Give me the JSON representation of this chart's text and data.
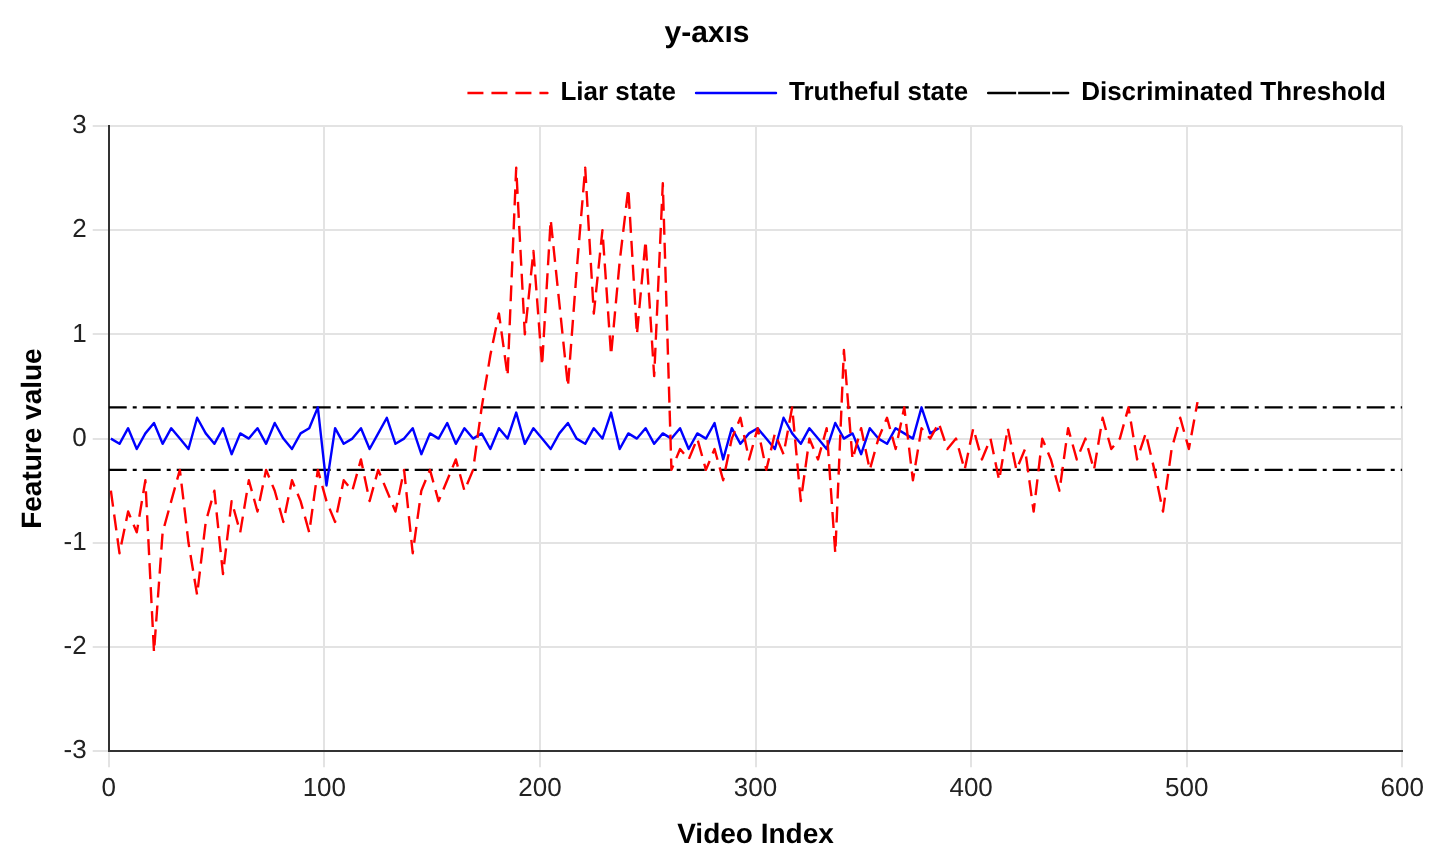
{
  "chart_data": {
    "type": "line",
    "title": "y-axıs",
    "xlabel": "Video Index",
    "ylabel": "Feature value",
    "xlim": [
      0,
      600
    ],
    "xticks": [
      0,
      100,
      200,
      300,
      400,
      500,
      600
    ],
    "ylim": [
      -3,
      3
    ],
    "yticks": [
      -3,
      -2,
      -1,
      0,
      1,
      2,
      3
    ],
    "grid": true,
    "legend": "top right",
    "marker": "none",
    "series": [
      {
        "name": "Liar state",
        "color": "#ff0000",
        "line_style": "dashed",
        "x": [
          1,
          5,
          9,
          13,
          17,
          21,
          25,
          29,
          33,
          37,
          41,
          45,
          49,
          53,
          57,
          61,
          65,
          69,
          73,
          77,
          81,
          85,
          89,
          93,
          97,
          101,
          105,
          109,
          113,
          117,
          121,
          125,
          129,
          133,
          137,
          141,
          145,
          149,
          153,
          157,
          161,
          165,
          169,
          173,
          177,
          181,
          185,
          189,
          193,
          197,
          201,
          205,
          209,
          213,
          217,
          221,
          225,
          229,
          233,
          237,
          241,
          245,
          249,
          253,
          257,
          261,
          265,
          269,
          273,
          277,
          281,
          285,
          289,
          293,
          297,
          301,
          305,
          309,
          313,
          317,
          321,
          325,
          329,
          333,
          337,
          341,
          345,
          349,
          353,
          357,
          361,
          365,
          369,
          373,
          377,
          381,
          385,
          389,
          393,
          397,
          401,
          405,
          409,
          413,
          417,
          421,
          425,
          429,
          433,
          437,
          441,
          445,
          449,
          453,
          457,
          461,
          465,
          469,
          473,
          477,
          481,
          485,
          489,
          493,
          497,
          501,
          505
        ],
        "values": [
          -0.5,
          -1.1,
          -0.7,
          -0.9,
          -0.4,
          -2.05,
          -0.9,
          -0.6,
          -0.3,
          -1.0,
          -1.5,
          -0.8,
          -0.5,
          -1.3,
          -0.6,
          -0.9,
          -0.4,
          -0.7,
          -0.3,
          -0.5,
          -0.8,
          -0.4,
          -0.6,
          -0.9,
          -0.3,
          -0.6,
          -0.8,
          -0.4,
          -0.5,
          -0.2,
          -0.6,
          -0.3,
          -0.5,
          -0.7,
          -0.3,
          -1.1,
          -0.5,
          -0.3,
          -0.6,
          -0.4,
          -0.2,
          -0.5,
          -0.3,
          0.3,
          0.8,
          1.2,
          0.6,
          2.6,
          1.0,
          1.8,
          0.7,
          2.1,
          1.3,
          0.5,
          1.6,
          2.6,
          1.2,
          2.0,
          0.8,
          1.7,
          2.4,
          1.0,
          1.9,
          0.6,
          2.45,
          -0.3,
          -0.1,
          -0.2,
          0.0,
          -0.3,
          -0.1,
          -0.4,
          0.0,
          0.2,
          -0.2,
          0.1,
          -0.3,
          0.05,
          -0.15,
          0.3,
          -0.6,
          0.0,
          -0.2,
          0.1,
          -1.1,
          0.85,
          -0.2,
          0.1,
          -0.3,
          0.0,
          0.2,
          -0.1,
          0.3,
          -0.4,
          0.1,
          0.0,
          0.15,
          -0.1,
          0.0,
          -0.3,
          0.1,
          -0.2,
          0.0,
          -0.4,
          0.1,
          -0.3,
          -0.1,
          -0.7,
          0.0,
          -0.2,
          -0.5,
          0.1,
          -0.2,
          0.0,
          -0.3,
          0.2,
          -0.1,
          0.0,
          0.3,
          -0.2,
          0.05,
          -0.3,
          -0.7,
          -0.1,
          0.2,
          -0.1,
          0.35
        ]
      },
      {
        "name": "Trutheful state",
        "color": "#0000ff",
        "line_style": "solid",
        "x": [
          1,
          5,
          9,
          13,
          17,
          21,
          25,
          29,
          33,
          37,
          41,
          45,
          49,
          53,
          57,
          61,
          65,
          69,
          73,
          77,
          81,
          85,
          89,
          93,
          97,
          101,
          105,
          109,
          113,
          117,
          121,
          125,
          129,
          133,
          137,
          141,
          145,
          149,
          153,
          157,
          161,
          165,
          169,
          173,
          177,
          181,
          185,
          189,
          193,
          197,
          201,
          205,
          209,
          213,
          217,
          221,
          225,
          229,
          233,
          237,
          241,
          245,
          249,
          253,
          257,
          261,
          265,
          269,
          273,
          277,
          281,
          285,
          289,
          293,
          297,
          301,
          305,
          309,
          313,
          317,
          321,
          325,
          329,
          333,
          337,
          341,
          345,
          349,
          353,
          357,
          361,
          365,
          369,
          373,
          377,
          381,
          385
        ],
        "values": [
          0.0,
          -0.05,
          0.1,
          -0.1,
          0.05,
          0.15,
          -0.05,
          0.1,
          0.0,
          -0.1,
          0.2,
          0.05,
          -0.05,
          0.1,
          -0.15,
          0.05,
          0.0,
          0.1,
          -0.05,
          0.15,
          0.0,
          -0.1,
          0.05,
          0.1,
          0.3,
          -0.45,
          0.1,
          -0.05,
          0.0,
          0.1,
          -0.1,
          0.05,
          0.2,
          -0.05,
          0.0,
          0.1,
          -0.15,
          0.05,
          0.0,
          0.15,
          -0.05,
          0.1,
          0.0,
          0.05,
          -0.1,
          0.1,
          0.0,
          0.25,
          -0.05,
          0.1,
          0.0,
          -0.1,
          0.05,
          0.15,
          0.0,
          -0.05,
          0.1,
          0.0,
          0.25,
          -0.1,
          0.05,
          0.0,
          0.1,
          -0.05,
          0.05,
          0.0,
          0.1,
          -0.1,
          0.05,
          0.0,
          0.15,
          -0.2,
          0.1,
          -0.05,
          0.05,
          0.1,
          0.0,
          -0.1,
          0.2,
          0.05,
          -0.05,
          0.1,
          0.0,
          -0.1,
          0.15,
          0.0,
          0.05,
          -0.15,
          0.1,
          0.0,
          -0.05,
          0.1,
          0.05,
          0.0,
          0.3,
          0.05,
          0.1
        ]
      },
      {
        "name": "Discriminated Threshold",
        "color": "#000000",
        "line_style": "dashed",
        "x": [
          0,
          600
        ],
        "values": [
          0.3,
          0.3
        ]
      },
      {
        "color": "#000000",
        "line_style": "dashed",
        "x": [
          0,
          600
        ],
        "values": [
          -0.3,
          -0.3
        ]
      }
    ]
  }
}
